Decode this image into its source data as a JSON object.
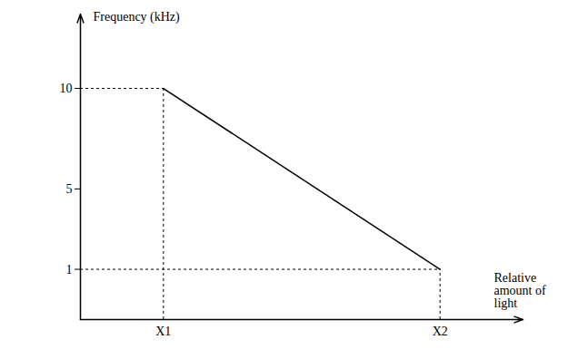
{
  "chart_data": {
    "type": "line",
    "y_label": "Frequency (kHz)",
    "x_label": "Relative amount of light",
    "x": [
      1,
      2
    ],
    "values": [
      10,
      1
    ],
    "color": "#000000",
    "xlim": [
      0.7,
      2.3
    ],
    "ylim": [
      -1.5,
      13.7
    ],
    "xticks": [
      {
        "value": 1,
        "label": "X1"
      },
      {
        "value": 2,
        "label": "X2"
      }
    ],
    "yticks": [
      1,
      5,
      10
    ],
    "grid": false
  }
}
